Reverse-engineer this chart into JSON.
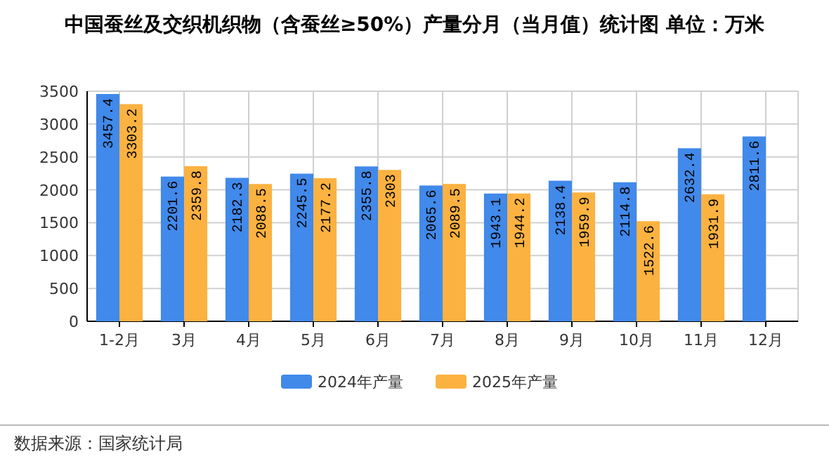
{
  "chart_data": {
    "type": "bar",
    "title": "中国蚕丝及交织机织物（含蚕丝≥50%）产量分月（当月值）统计图 单位：万米",
    "categories": [
      "1-2月",
      "3月",
      "4月",
      "5月",
      "6月",
      "7月",
      "8月",
      "9月",
      "10月",
      "11月",
      "12月"
    ],
    "series": [
      {
        "name": "2024年产量",
        "color": "#4189ea",
        "values": [
          3457.4,
          2201.6,
          2182.3,
          2245.5,
          2355.8,
          2065.6,
          1943.1,
          2138.4,
          2114.8,
          2632.4,
          2811.6
        ]
      },
      {
        "name": "2025年产量",
        "color": "#fbb241",
        "values": [
          3303.2,
          2359.8,
          2088.5,
          2177.2,
          2303,
          2089.5,
          1944.2,
          1959.9,
          1522.6,
          1931.9,
          null
        ]
      }
    ],
    "ylim": [
      0,
      3500
    ],
    "yticks": [
      0,
      500,
      1000,
      1500,
      2000,
      2500,
      3000,
      3500
    ],
    "grid": true,
    "legend": "bottom",
    "data_labels": true,
    "annotations": [
      "数据来源：国家统计局"
    ]
  }
}
